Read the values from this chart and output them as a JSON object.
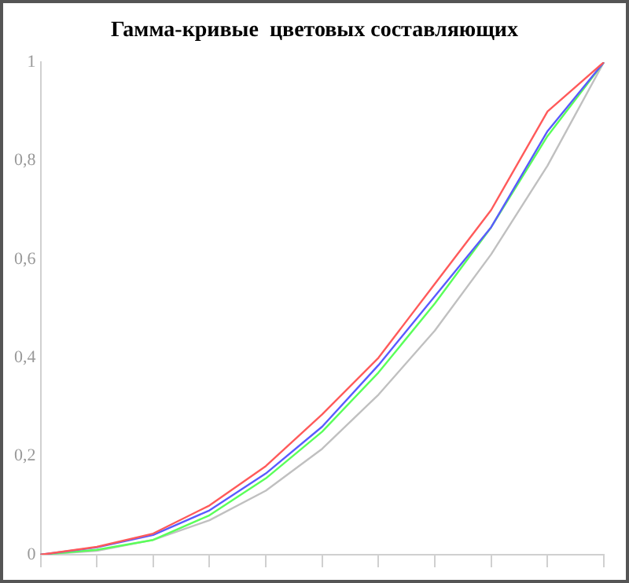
{
  "chart_data": {
    "type": "line",
    "title": "Гамма-кривые  цветовых составляющих",
    "categories": [
      null,
      null,
      null,
      null,
      null,
      null,
      null,
      null,
      null,
      null,
      null
    ],
    "series": [
      {
        "color": "#ff5a5a",
        "values": [
          0,
          0.016,
          0.043,
          0.1,
          0.18,
          0.285,
          0.4,
          0.55,
          0.7,
          0.9,
          1
        ]
      },
      {
        "color": "#5a5aff",
        "values": [
          0,
          0.015,
          0.04,
          0.09,
          0.165,
          0.26,
          0.385,
          0.525,
          0.665,
          0.86,
          1
        ]
      },
      {
        "color": "#5aff5a",
        "values": [
          0,
          0.01,
          0.03,
          0.08,
          0.155,
          0.25,
          0.37,
          0.51,
          0.665,
          0.85,
          1
        ]
      },
      {
        "color": "#c0c0c0",
        "values": [
          0,
          0.008,
          0.03,
          0.07,
          0.13,
          0.215,
          0.325,
          0.455,
          0.61,
          0.79,
          1
        ]
      }
    ],
    "ylim": [
      0,
      1
    ],
    "yticks": [
      0,
      {
        "value": 0.2,
        "label": "0,2"
      },
      {
        "value": 0.4,
        "label": "0,4"
      },
      {
        "value": 0.6,
        "label": "0,6"
      },
      {
        "value": 0.8,
        "label": "0,8"
      },
      1
    ],
    "tick_labels": "y",
    "grid": false,
    "legend": false,
    "marker": "none",
    "line_style": "solid"
  }
}
